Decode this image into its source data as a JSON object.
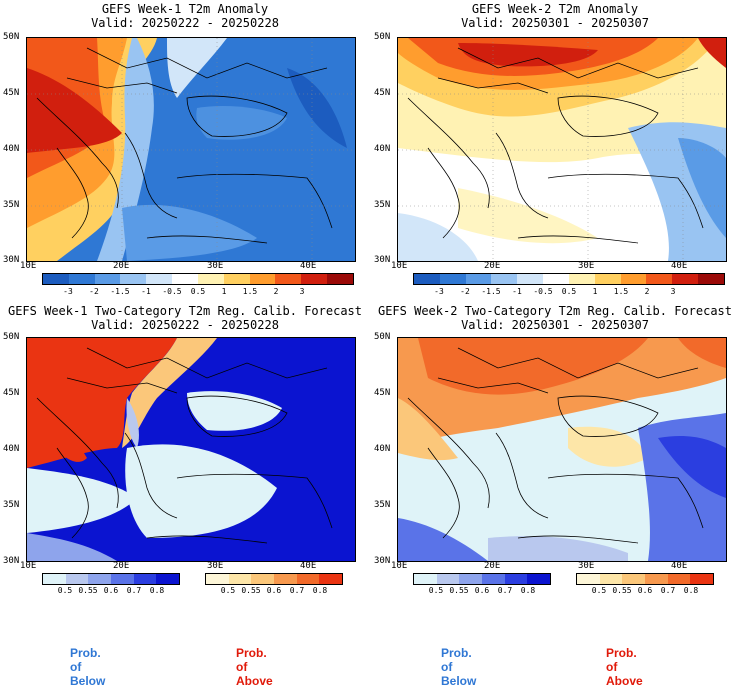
{
  "panels": [
    {
      "title": "GEFS Week-1 T2m Anomaly",
      "valid": "Valid: 20250222 - 20250228"
    },
    {
      "title": "GEFS Week-2 T2m Anomaly",
      "valid": "Valid: 20250301 - 20250307"
    },
    {
      "title": "GEFS Week-1 Two-Category T2m Reg. Calib. Forecast",
      "valid": "Valid: 20250222 - 20250228"
    },
    {
      "title": "GEFS Week-2 Two-Category T2m Reg. Calib. Forecast",
      "valid": "Valid: 20250301 - 20250307"
    }
  ],
  "lat_labels": [
    "50N",
    "45N",
    "40N",
    "35N",
    "30N"
  ],
  "lon_labels": [
    "10E",
    "20E",
    "30E",
    "40E"
  ],
  "anomaly_colorbar": {
    "ticks": [
      "-3",
      "-2",
      "-1.5",
      "-1",
      "-0.5",
      "0.5",
      "1",
      "1.5",
      "2",
      "3"
    ],
    "colors": [
      "#1c5cbf",
      "#2f78d4",
      "#5a9be6",
      "#99c4f2",
      "#d2e6f9",
      "#ffffff",
      "#fff2b3",
      "#ffd060",
      "#ff9d2e",
      "#f2581a",
      "#d11f0e",
      "#9b0a08"
    ]
  },
  "prob_below": {
    "label": "Prob. of Below",
    "ticks": [
      "0.5",
      "0.55",
      "0.6",
      "0.7",
      "0.8"
    ],
    "colors": [
      "#dff3f8",
      "#b9c8ee",
      "#8ea4ec",
      "#5a73e8",
      "#2b3ee0",
      "#0b14d0"
    ],
    "label_color": "#2f77d4"
  },
  "prob_above": {
    "label": "Prob. of Above",
    "ticks": [
      "0.5",
      "0.55",
      "0.6",
      "0.7",
      "0.8"
    ],
    "colors": [
      "#fdf6d8",
      "#fde6a8",
      "#fbc77a",
      "#f7994e",
      "#f26a2a",
      "#ea3412"
    ],
    "label_color": "#e01a0a"
  }
}
